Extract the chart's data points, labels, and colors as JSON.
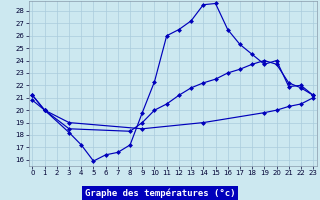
{
  "title": "Graphe des températures (°c)",
  "bg_color": "#cce8f0",
  "line_color": "#0000bb",
  "grid_color": "#aaccdd",
  "xlim": [
    -0.3,
    23.3
  ],
  "ylim": [
    15.5,
    28.8
  ],
  "yticks": [
    16,
    17,
    18,
    19,
    20,
    21,
    22,
    23,
    24,
    25,
    26,
    27,
    28
  ],
  "xticks": [
    0,
    1,
    2,
    3,
    4,
    5,
    6,
    7,
    8,
    9,
    10,
    11,
    12,
    13,
    14,
    15,
    16,
    17,
    18,
    19,
    20,
    21,
    22,
    23
  ],
  "curve1_x": [
    0,
    1,
    3,
    4,
    5,
    6,
    7,
    8,
    9,
    10,
    11,
    12,
    13,
    14,
    15,
    16,
    17,
    18,
    19,
    20,
    21,
    22,
    23
  ],
  "curve1_y": [
    21.2,
    20.0,
    18.2,
    17.2,
    15.9,
    16.4,
    16.6,
    17.2,
    19.8,
    22.3,
    26.0,
    26.5,
    27.2,
    28.5,
    28.6,
    26.5,
    25.3,
    24.5,
    23.7,
    24.0,
    21.9,
    22.0,
    21.2
  ],
  "curve2_x": [
    0,
    1,
    3,
    8,
    9,
    10,
    11,
    12,
    13,
    14,
    15,
    16,
    17,
    18,
    19,
    20,
    21,
    22,
    23
  ],
  "curve2_y": [
    21.2,
    20.0,
    18.5,
    18.3,
    19.0,
    20.0,
    20.5,
    21.2,
    21.8,
    22.2,
    22.5,
    23.0,
    23.3,
    23.7,
    24.0,
    23.7,
    22.2,
    21.8,
    21.2
  ],
  "curve3_x": [
    0,
    1,
    3,
    9,
    14,
    19,
    20,
    21,
    22,
    23
  ],
  "curve3_y": [
    20.8,
    20.0,
    19.0,
    18.5,
    19.0,
    19.8,
    20.0,
    20.3,
    20.5,
    21.0
  ]
}
